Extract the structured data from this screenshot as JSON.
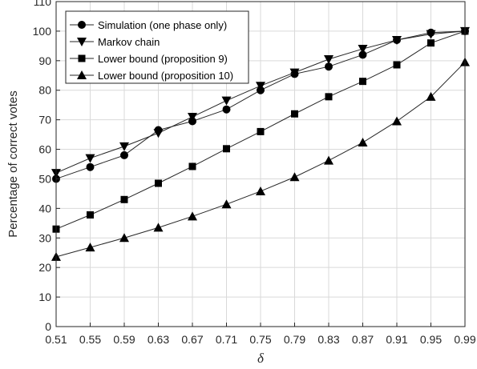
{
  "chart_data": {
    "type": "line",
    "title": "",
    "xlabel": "δ",
    "ylabel": "Percentage of correct votes",
    "x": [
      0.51,
      0.55,
      0.59,
      0.63,
      0.67,
      0.71,
      0.75,
      0.79,
      0.83,
      0.87,
      0.91,
      0.95,
      0.99
    ],
    "x_tick_labels": [
      "0.51",
      "0.55",
      "0.59",
      "0.63",
      "0.67",
      "0.71",
      "0.75",
      "0.79",
      "0.83",
      "0.87",
      "0.91",
      "0.95",
      "0.99"
    ],
    "ylim": [
      0,
      110
    ],
    "y_ticks": [
      0,
      10,
      20,
      30,
      40,
      50,
      60,
      70,
      80,
      90,
      100,
      110
    ],
    "grid": true,
    "legend_position": "top-left",
    "series": [
      {
        "name": "Simulation (one phase only)",
        "marker": "circle",
        "values": [
          50,
          54,
          58,
          66.5,
          69.5,
          73.5,
          80,
          85.5,
          88,
          92,
          97,
          99.5,
          100
        ]
      },
      {
        "name": "Markov chain",
        "marker": "triangle-down",
        "values": [
          52,
          57,
          61,
          65.5,
          71,
          76.5,
          81.5,
          86,
          90.5,
          94,
          97,
          99,
          100
        ]
      },
      {
        "name": "Lower bound (proposition 9)",
        "marker": "square",
        "values": [
          33,
          37.8,
          43,
          48.5,
          54.2,
          60.2,
          66,
          72,
          77.8,
          83,
          88.6,
          96,
          100
        ]
      },
      {
        "name": "Lower bound (proposition 10)",
        "marker": "triangle-up",
        "values": [
          23.6,
          26.8,
          30,
          33.5,
          37.3,
          41.4,
          45.8,
          50.6,
          56.2,
          62.3,
          69.5,
          77.8,
          89.5
        ]
      }
    ],
    "colors": {
      "line": "#262626",
      "marker": "#000000",
      "grid": "#d9d9d9"
    }
  }
}
